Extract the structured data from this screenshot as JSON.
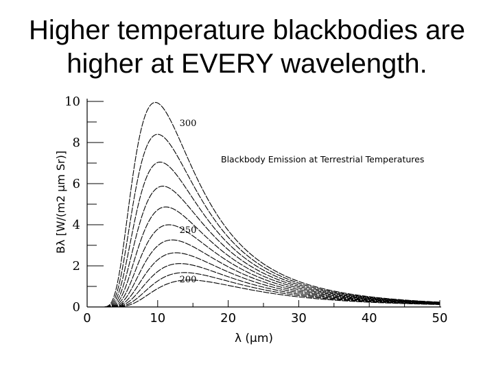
{
  "slide": {
    "title_line1": "Higher temperature blackbodies are",
    "title_line2": "higher at EVERY wavelength."
  },
  "chart_data": {
    "type": "line",
    "title": "Blackbody Emission at Terrestrial Temperatures",
    "xlabel": "λ (μm)",
    "ylabel": "Bλ  [W/(m2 μm Sr)]",
    "xlim": [
      0,
      50
    ],
    "ylim": [
      0,
      10
    ],
    "x_ticks": [
      "0",
      "10",
      "20",
      "30",
      "40",
      "50"
    ],
    "y_ticks": [
      "0",
      "2",
      "4",
      "6",
      "8",
      "10"
    ],
    "curve_labels": [
      {
        "text": "300",
        "x": 14.3,
        "y": 8.8
      },
      {
        "text": "250",
        "x": 14.3,
        "y": 3.6
      },
      {
        "text": "200",
        "x": 14.3,
        "y": 1.2
      }
    ],
    "grid": false,
    "series_temperatures_K": [
      200,
      210,
      220,
      230,
      240,
      250,
      260,
      270,
      280,
      290,
      300
    ],
    "line_color": "#000000"
  }
}
